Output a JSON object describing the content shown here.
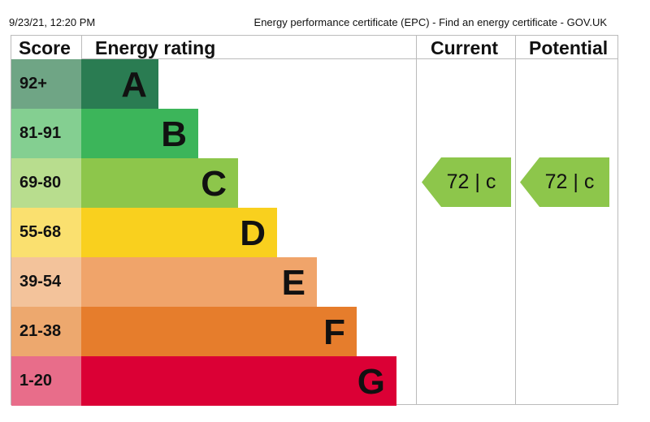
{
  "header": {
    "timestamp": "9/23/21, 12:20 PM",
    "title": "Energy performance certificate (EPC) - Find an energy certificate - GOV.UK"
  },
  "table": {
    "score_header": "Score",
    "rating_header": "Energy rating",
    "current_header": "Current",
    "potential_header": "Potential"
  },
  "bands": [
    {
      "score": "92+",
      "letter": "A",
      "color": "#2a7c52",
      "score_color": "#6fa585"
    },
    {
      "score": "81-91",
      "letter": "B",
      "color": "#3cb55a",
      "score_color": "#84cf91"
    },
    {
      "score": "69-80",
      "letter": "C",
      "color": "#8dc64b",
      "score_color": "#b8dd8e"
    },
    {
      "score": "55-68",
      "letter": "D",
      "color": "#f9d01e",
      "score_color": "#fae06f"
    },
    {
      "score": "39-54",
      "letter": "E",
      "color": "#f0a46a",
      "score_color": "#f3c39b"
    },
    {
      "score": "21-38",
      "letter": "F",
      "color": "#e67d2c",
      "score_color": "#eda86e"
    },
    {
      "score": "1-20",
      "letter": "G",
      "color": "#db0035",
      "score_color": "#e86d8a"
    }
  ],
  "current": {
    "label": "72 |  c",
    "score": 72,
    "band": "C",
    "color": "#8dc64b"
  },
  "potential": {
    "label": "72 |  c",
    "score": 72,
    "band": "C",
    "color": "#8dc64b"
  }
}
